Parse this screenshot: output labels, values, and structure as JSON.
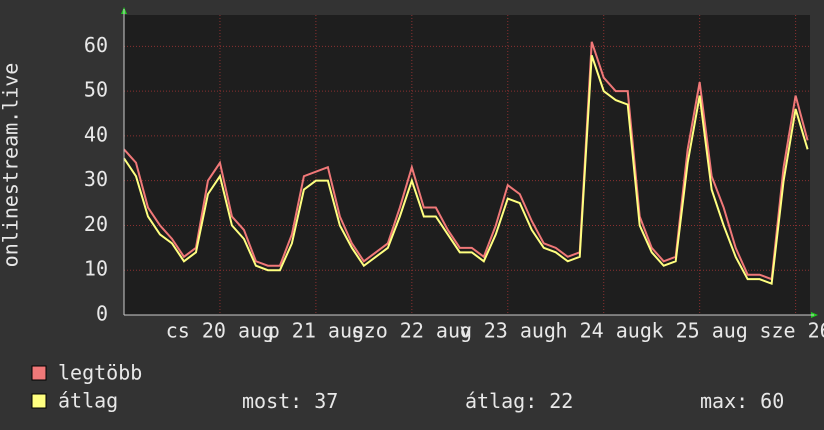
{
  "chart_data": {
    "type": "line",
    "y_label": "onlinestream.live",
    "x": [
      19,
      19.125,
      19.25,
      19.375,
      19.5,
      19.625,
      19.75,
      19.875,
      20,
      20.125,
      20.25,
      20.375,
      20.5,
      20.625,
      20.75,
      20.875,
      21,
      21.125,
      21.25,
      21.375,
      21.5,
      21.625,
      21.75,
      21.875,
      22,
      22.125,
      22.25,
      22.375,
      22.5,
      22.625,
      22.75,
      22.875,
      23,
      23.125,
      23.25,
      23.375,
      23.5,
      23.625,
      23.75,
      23.875,
      24,
      24.125,
      24.25,
      24.375,
      24.5,
      24.625,
      24.75,
      24.875,
      25,
      25.125,
      25.25,
      25.375,
      25.5,
      25.625,
      25.75,
      25.875,
      26,
      26.125
    ],
    "series": [
      {
        "name": "legtöbb",
        "color": "#f07878",
        "values": [
          37,
          34,
          24,
          20,
          17,
          13,
          15,
          30,
          34,
          22,
          19,
          12,
          11,
          11,
          18,
          31,
          32,
          33,
          22,
          16,
          12,
          14,
          16,
          24,
          33,
          24,
          24,
          19,
          15,
          15,
          13,
          20,
          29,
          27,
          21,
          16,
          15,
          13,
          14,
          61,
          53,
          50,
          50,
          22,
          15,
          12,
          13,
          37,
          52,
          31,
          24,
          15,
          9,
          9,
          8,
          33,
          49,
          39
        ]
      },
      {
        "name": "átlag",
        "color": "#ffff80",
        "values": [
          35,
          31,
          22,
          18,
          16,
          12,
          14,
          27,
          31,
          20,
          17,
          11,
          10,
          10,
          16,
          28,
          30,
          30,
          20,
          15,
          11,
          13,
          15,
          22,
          30,
          22,
          22,
          18,
          14,
          14,
          12,
          18,
          26,
          25,
          19,
          15,
          14,
          12,
          13,
          58,
          50,
          48,
          47,
          20,
          14,
          11,
          12,
          34,
          49,
          28,
          20,
          13,
          8,
          8,
          7,
          30,
          46,
          37
        ]
      }
    ],
    "xlim": [
      19,
      26.15
    ],
    "xticks": [
      {
        "value": 20,
        "label": "cs 20 aug"
      },
      {
        "value": 21,
        "label": "p 21 aug"
      },
      {
        "value": 22,
        "label": "szo 22 aug"
      },
      {
        "value": 23,
        "label": "v 23 aug"
      },
      {
        "value": 24,
        "label": "h 24 aug"
      },
      {
        "value": 25,
        "label": "k 25 aug"
      },
      {
        "value": 26,
        "label": "sze 26"
      }
    ],
    "ylim": [
      0,
      67
    ],
    "yticks": [
      0,
      10,
      20,
      30,
      40,
      50,
      60
    ],
    "grid": true,
    "stats": [
      {
        "label": "most:",
        "value": 37
      },
      {
        "label": "átlag:",
        "value": 22
      },
      {
        "label": "max:",
        "value": 60
      }
    ]
  }
}
